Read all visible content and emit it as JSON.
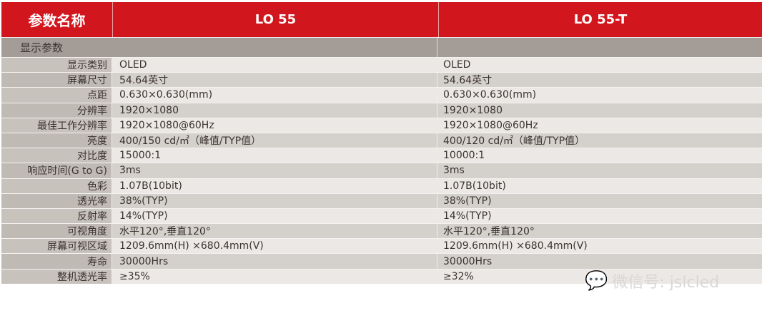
{
  "header": {
    "param_name": "参数名称",
    "model1": "LO 55",
    "model2": "LO 55-T"
  },
  "section": "显示参数",
  "rows": [
    {
      "label": "显示类别",
      "v1": "OLED",
      "v2": "OLED"
    },
    {
      "label": "屏幕尺寸",
      "v1": "54.64英寸",
      "v2": "54.64英寸"
    },
    {
      "label": "点距",
      "v1": "0.630×0.630(mm)",
      "v2": "0.630×0.630(mm)"
    },
    {
      "label": "分辨率",
      "v1": "1920×1080",
      "v2": "1920×1080"
    },
    {
      "label": "最佳工作分辨率",
      "v1": "1920×1080@60Hz",
      "v2": "1920×1080@60Hz"
    },
    {
      "label": "亮度",
      "v1": "400/150 cd/㎡（峰值/TYP值）",
      "v2": "400/120 cd/㎡（峰值/TYP值）"
    },
    {
      "label": "对比度",
      "v1": "15000:1",
      "v2": "10000:1"
    },
    {
      "label": "响应时间(G to G)",
      "v1": "3ms",
      "v2": "3ms"
    },
    {
      "label": "色彩",
      "v1": "1.07B(10bit)",
      "v2": "1.07B(10bit)"
    },
    {
      "label": "透光率",
      "v1": "38%(TYP)",
      "v2": "38%(TYP)"
    },
    {
      "label": "反射率",
      "v1": "14%(TYP)",
      "v2": "14%(TYP)"
    },
    {
      "label": "可视角度",
      "v1": "水平120°,垂直120°",
      "v2": "水平120°,垂直120°"
    },
    {
      "label": "屏幕可视区域",
      "v1": "1209.6mm(H) ×680.4mm(V)",
      "v2": "1209.6mm(H) ×680.4mm(V)"
    },
    {
      "label": "寿命",
      "v1": "30000Hrs",
      "v2": "30000Hrs"
    },
    {
      "label": "整机透光率",
      "v1": "≥35%",
      "v2": "≥32%"
    }
  ],
  "watermark": {
    "icon": "wechat-icon",
    "text": "微信号: jslcled"
  },
  "colors": {
    "header": "#d2161d",
    "section": "#a39c97"
  }
}
